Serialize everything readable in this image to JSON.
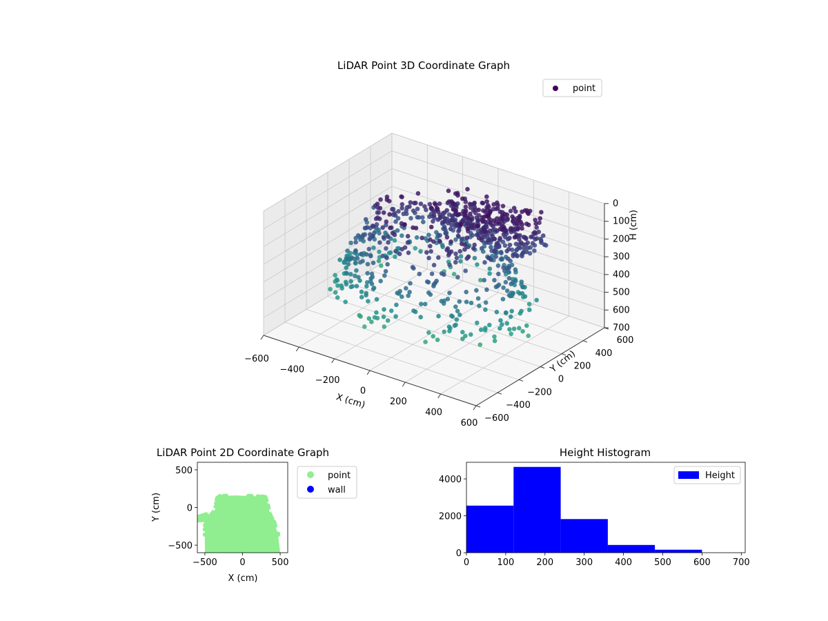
{
  "chart_data": [
    {
      "id": "lidar-3d",
      "type": "scatter",
      "projection": "3d",
      "title": "LiDAR Point 3D Coordinate Graph",
      "xlabel": "X (cm)",
      "ylabel": "Y (cm)",
      "zlabel": "H (cm)",
      "xlim": [
        -600,
        600
      ],
      "ylim": [
        -600,
        600
      ],
      "zlim": [
        700,
        0
      ],
      "z_inverted": true,
      "x_ticks": [
        "−600",
        "−400",
        "−200",
        "0",
        "200",
        "400",
        "600"
      ],
      "y_ticks": [
        "−600",
        "−400",
        "−200",
        "0",
        "200",
        "400",
        "600"
      ],
      "z_ticks": [
        "0",
        "100",
        "200",
        "300",
        "400",
        "500",
        "600",
        "700"
      ],
      "colormap": "viridis",
      "grid": true,
      "legend": {
        "position": "top-right",
        "entries": [
          {
            "name": "point",
            "color": "#440154"
          }
        ]
      }
    },
    {
      "id": "lidar-2d",
      "type": "scatter",
      "title": "LiDAR Point 2D Coordinate Graph",
      "xlabel": "X (cm)",
      "ylabel": "Y (cm)",
      "xlim": [
        -600,
        600
      ],
      "ylim": [
        -600,
        600
      ],
      "x_ticks": [
        "−500",
        "0",
        "500"
      ],
      "y_ticks": [
        "500",
        "0",
        "−500"
      ],
      "series": [
        {
          "name": "point",
          "color": "#90ee90"
        },
        {
          "name": "wall",
          "color": "#0000ff"
        }
      ],
      "legend": {
        "position": "outside-right"
      }
    },
    {
      "id": "height-hist",
      "type": "bar",
      "title": "Height Histogram",
      "bins": [
        [
          0,
          120
        ],
        [
          120,
          240
        ],
        [
          240,
          360
        ],
        [
          360,
          480
        ],
        [
          480,
          600
        ]
      ],
      "values": [
        2550,
        4650,
        1820,
        420,
        160
      ],
      "xlim": [
        0,
        710
      ],
      "ylim": [
        0,
        4900
      ],
      "x_ticks": [
        "0",
        "100",
        "200",
        "300",
        "400",
        "500",
        "600",
        "700"
      ],
      "y_ticks": [
        "0",
        "2000",
        "4000"
      ],
      "bar_color": "#0000ff",
      "legend": {
        "position": "top-right",
        "entries": [
          {
            "name": "Height",
            "color": "#0000ff"
          }
        ]
      }
    }
  ]
}
